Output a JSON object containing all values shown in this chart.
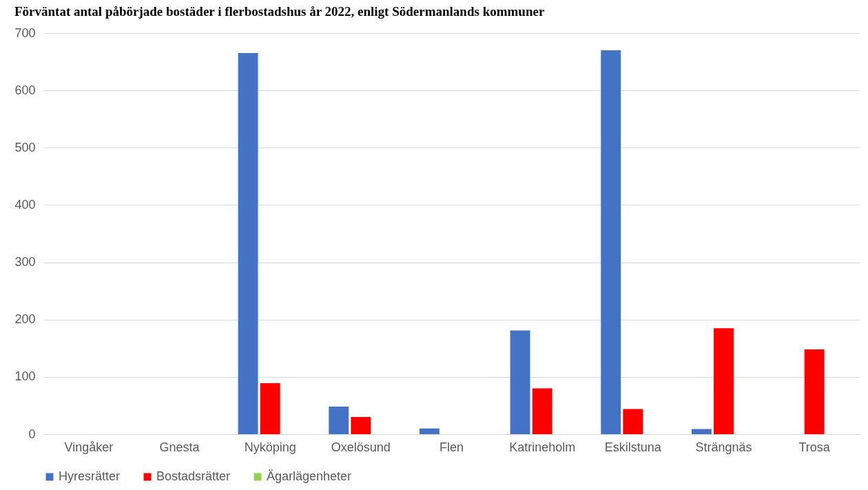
{
  "chart_data": {
    "type": "bar",
    "title": "Förväntat antal påbörjade bostäder i flerbostadshus år 2022, enligt Södermanlands kommuner",
    "categories": [
      "Vingåker",
      "Gnesta",
      "Nyköping",
      "Oxelösund",
      "Flen",
      "Katrineholm",
      "Eskilstuna",
      "Strängnäs",
      "Trosa"
    ],
    "series": [
      {
        "name": "Hyresrätter",
        "color": "#4472c4",
        "values": [
          0,
          0,
          665,
          48,
          10,
          181,
          670,
          9,
          0
        ]
      },
      {
        "name": "Bostadsrätter",
        "color": "#ff0000",
        "values": [
          0,
          0,
          89,
          30,
          0,
          80,
          44,
          185,
          148
        ]
      },
      {
        "name": "Ägarlägenheter",
        "color": "#92d050",
        "values": [
          0,
          0,
          0,
          0,
          0,
          0,
          0,
          0,
          0
        ]
      }
    ],
    "ylim": [
      0,
      700
    ],
    "yticks": [
      0,
      100,
      200,
      300,
      400,
      500,
      600,
      700
    ],
    "grid": "y",
    "legend": "bottom"
  }
}
